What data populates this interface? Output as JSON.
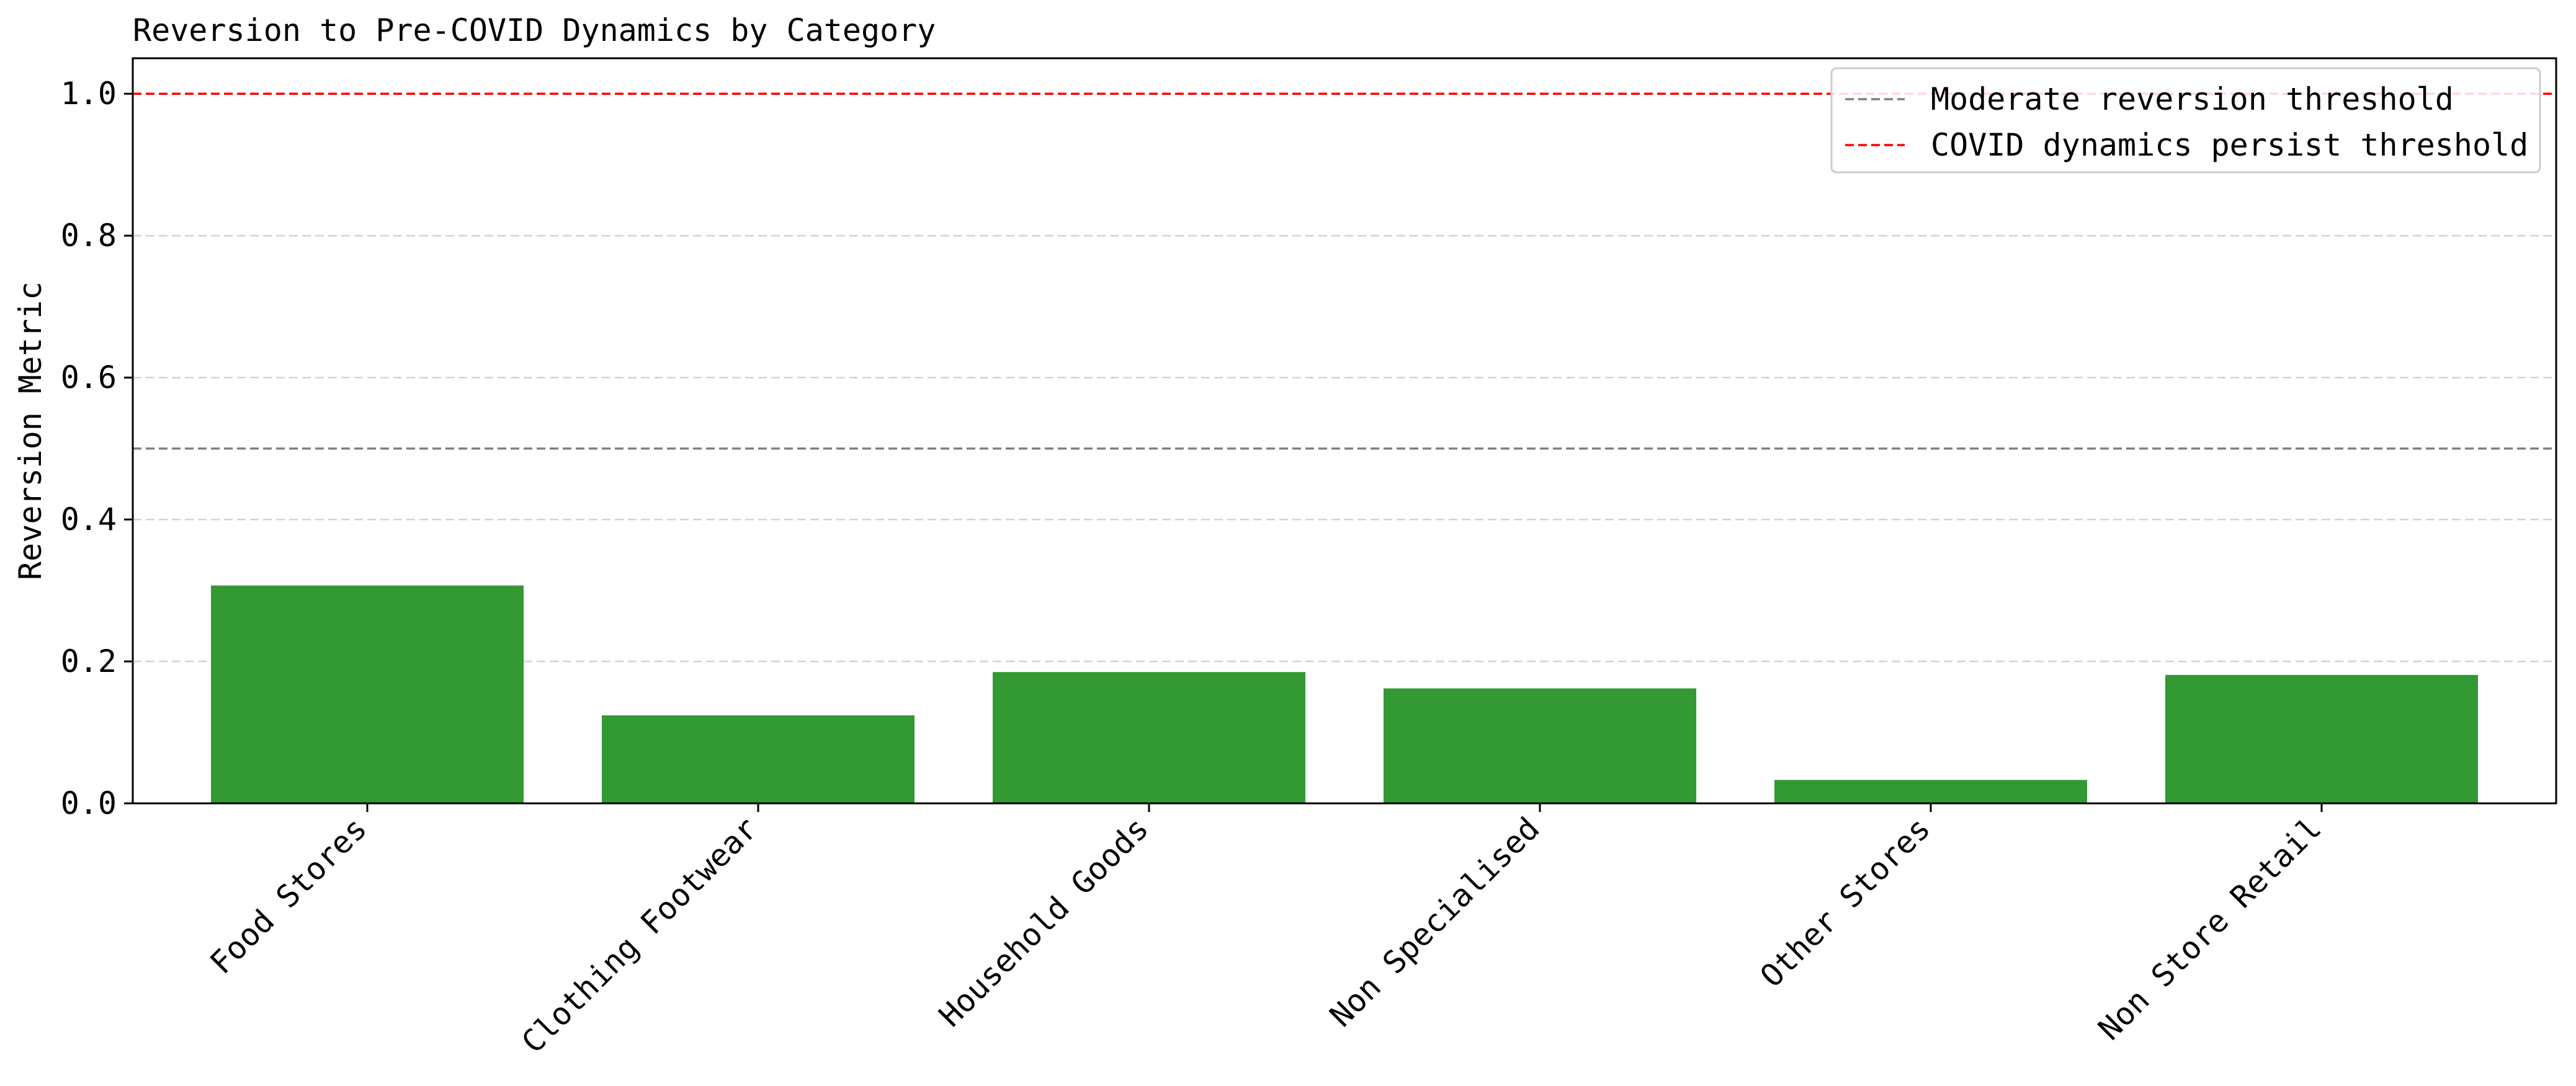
{
  "chart_data": {
    "type": "bar",
    "title": "Reversion to Pre-COVID Dynamics by Category",
    "ylabel": "Reversion Metric",
    "xlabel": "",
    "categories": [
      "Food Stores",
      "Clothing Footwear",
      "Household Goods",
      "Non Specialised",
      "Other Stores",
      "Non Store Retail"
    ],
    "values": [
      0.307,
      0.124,
      0.185,
      0.162,
      0.033,
      0.181
    ],
    "ylim": [
      0,
      1.05
    ],
    "yticks": [
      0.0,
      0.2,
      0.4,
      0.6,
      0.8,
      1.0
    ],
    "ytick_labels": [
      "0.0",
      "0.2",
      "0.4",
      "0.6",
      "0.8",
      "1.0"
    ],
    "bar_color": "#339933",
    "grid": "y-dashed",
    "reference_lines": [
      {
        "name": "Moderate reversion threshold",
        "value": 0.5,
        "color": "#808080",
        "style": "dashed"
      },
      {
        "name": "COVID dynamics persist threshold",
        "value": 1.0,
        "color": "#ff0000",
        "style": "dashed"
      }
    ],
    "legend": "top-right"
  }
}
